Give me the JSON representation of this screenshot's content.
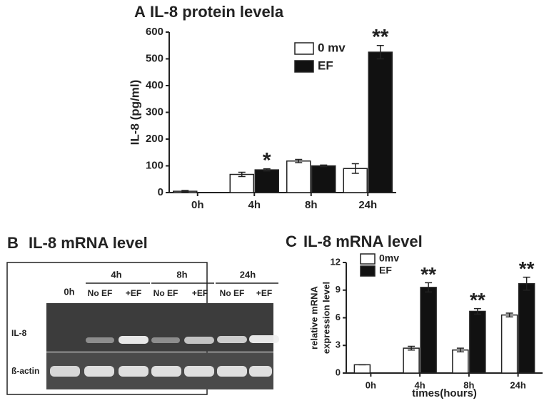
{
  "chart_data": [
    {
      "type": "bar",
      "panel": "A",
      "title": "IL-8 protein levela",
      "y_label": [
        "IL-8 (pg/ml)"
      ],
      "categories": [
        "0h",
        "4h",
        "8h",
        "24h"
      ],
      "series": [
        {
          "name": "0 mv",
          "color": "#ffffff",
          "values": [
            5,
            68,
            118,
            90
          ],
          "errors": [
            3,
            8,
            6,
            18
          ],
          "significance": [
            null,
            null,
            null,
            null
          ]
        },
        {
          "name": "EF",
          "color": "#111111",
          "values": [
            null,
            85,
            100,
            525
          ],
          "errors": [
            null,
            4,
            3,
            25
          ],
          "significance": [
            null,
            "*",
            null,
            "**"
          ]
        }
      ],
      "ylim": [
        0,
        600
      ],
      "yticks": [
        0,
        100,
        200,
        300,
        400,
        500,
        600
      ],
      "legend": "top-right"
    },
    {
      "type": "bar",
      "panel": "C",
      "title": "IL-8 mRNA level",
      "y_label": [
        "relative mRNA",
        "expression level"
      ],
      "x_label": "times(hours)",
      "categories": [
        "0h",
        "4h",
        "8h",
        "24h"
      ],
      "series": [
        {
          "name": "0mv",
          "color": "#ffffff",
          "values": [
            0.9,
            2.7,
            2.5,
            6.3
          ],
          "errors": [
            0,
            0.2,
            0.2,
            0.2
          ],
          "significance": [
            null,
            null,
            null,
            null
          ]
        },
        {
          "name": "EF",
          "color": "#111111",
          "values": [
            null,
            9.3,
            6.7,
            9.7
          ],
          "errors": [
            null,
            0.5,
            0.3,
            0.7
          ],
          "significance": [
            null,
            "**",
            "**",
            "**"
          ]
        }
      ],
      "ylim": [
        0,
        12
      ],
      "yticks": [
        0,
        3,
        6,
        9,
        12
      ],
      "legend": "top-left"
    }
  ],
  "gel_panel": {
    "panel": "B",
    "title": "IL-8 mRNA level",
    "time_labels": [
      "0h",
      "4h",
      "8h",
      "24h"
    ],
    "lane_labels": [
      "No EF",
      "+EF",
      "No EF",
      "+EF",
      "No EF",
      "+EF"
    ],
    "row_labels": [
      "IL-8",
      "ß-actin"
    ]
  }
}
